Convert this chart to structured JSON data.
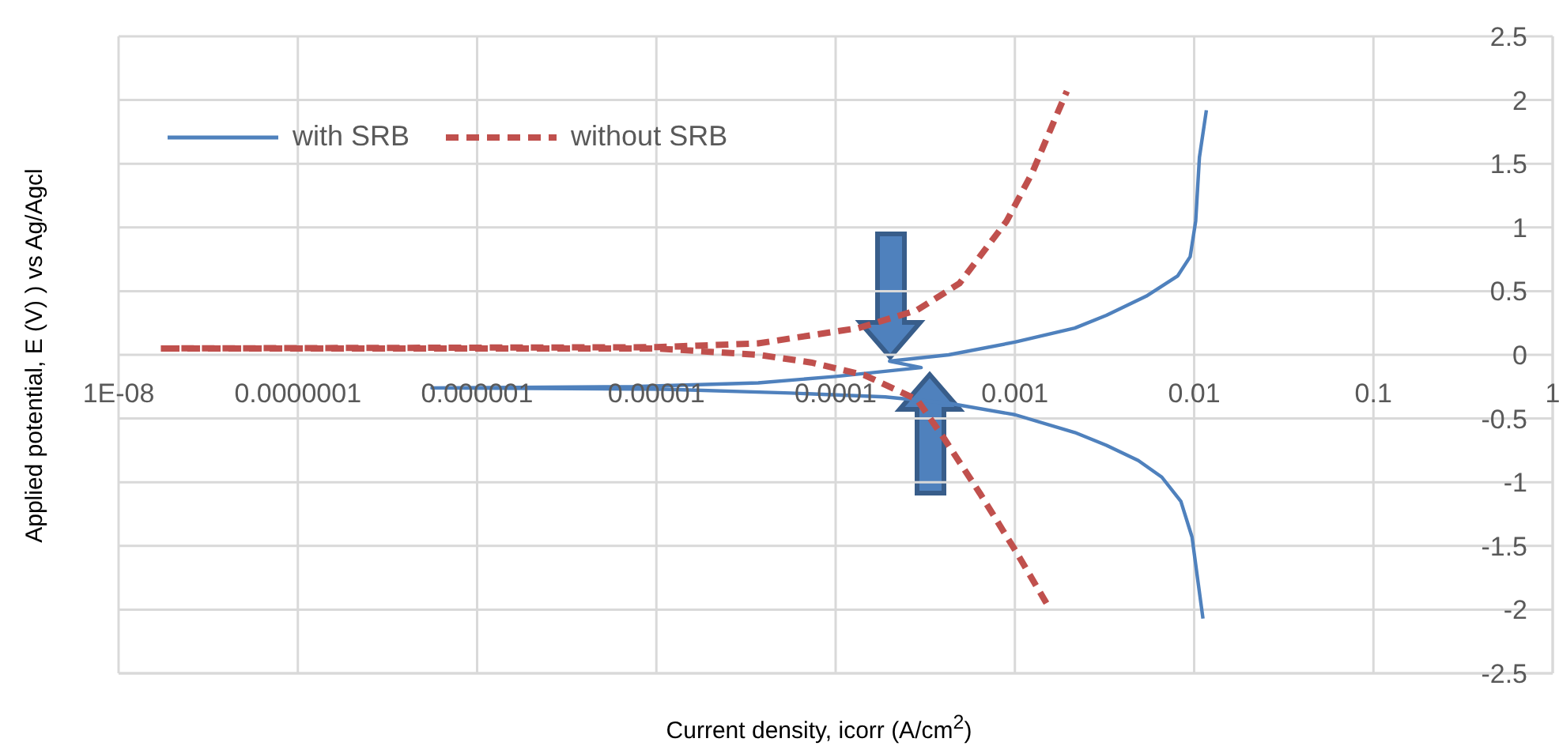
{
  "chart_data": {
    "type": "line",
    "xlabel": "Current density, icorr (A/cm$^{2}$)",
    "ylabel": "Applied potential, E (V) ) vs Ag/Agcl",
    "log": "x",
    "xlim": [
      1e-08,
      1
    ],
    "xticks": [
      {
        "value": 1e-08,
        "label": "1E-08"
      },
      {
        "value": 1e-07,
        "label": "0.0000001"
      },
      {
        "value": 1e-06,
        "label": "0.000001"
      },
      {
        "value": 1e-05,
        "label": "0.00001"
      },
      {
        "value": 0.0001,
        "label": "0.0001"
      },
      {
        "value": 0.001,
        "label": "0.001"
      },
      {
        "value": 0.01,
        "label": "0.01"
      },
      {
        "value": 0.1,
        "label": "0.1"
      },
      {
        "value": 1,
        "label": "1"
      }
    ],
    "ylim": [
      -2.5,
      2.5
    ],
    "yticks": [
      -2.5,
      -2,
      -1.5,
      -1,
      -0.5,
      0,
      0.5,
      1,
      1.5,
      2,
      2.5
    ],
    "grid": true,
    "legend": "top left",
    "marker": "none",
    "series": [
      {
        "name": "with SRB",
        "color": "#4f81bd",
        "line_style": "solid",
        "x": [
          0.0112,
          0.01055,
          0.00973,
          0.00843,
          0.0066,
          0.00488,
          0.00324,
          0.00216,
          0.001,
          0.000427,
          0.000189,
          5.6e-05,
          1.1e-05,
          5.6e-07,
          7.4e-06,
          3.7e-05,
          0.0001,
          0.0003,
          0.0002,
          0.000427,
          0.001,
          0.00216,
          0.00324,
          0.0054,
          0.0081,
          0.0095,
          0.0102,
          0.0107,
          0.0117
        ],
        "values": [
          -2.07,
          -1.8,
          -1.43,
          -1.15,
          -0.96,
          -0.83,
          -0.71,
          -0.61,
          -0.47,
          -0.38,
          -0.33,
          -0.3,
          -0.27,
          -0.26,
          -0.25,
          -0.22,
          -0.17,
          -0.1,
          -0.05,
          0,
          0.1,
          0.21,
          0.31,
          0.46,
          0.62,
          0.77,
          1.05,
          1.55,
          1.92
        ]
      },
      {
        "name": "without SRB",
        "color": "#c0504d",
        "line_style": "dashed",
        "x": [
          0.0015,
          0.00102,
          0.00064,
          0.0004,
          0.000284,
          0.000145,
          7.3e-05,
          3.7e-05,
          1e-05,
          1.7e-08,
          1e-05,
          3.7e-05,
          0.000134,
          0.000284,
          0.00049,
          0.0009,
          0.00125,
          0.00166,
          0.00195
        ],
        "values": [
          -1.95,
          -1.55,
          -1.09,
          -0.65,
          -0.35,
          -0.16,
          -0.06,
          0,
          0.05,
          0.05,
          0.06,
          0.09,
          0.21,
          0.35,
          0.56,
          1.05,
          1.43,
          1.84,
          2.07
        ]
      }
    ]
  }
}
